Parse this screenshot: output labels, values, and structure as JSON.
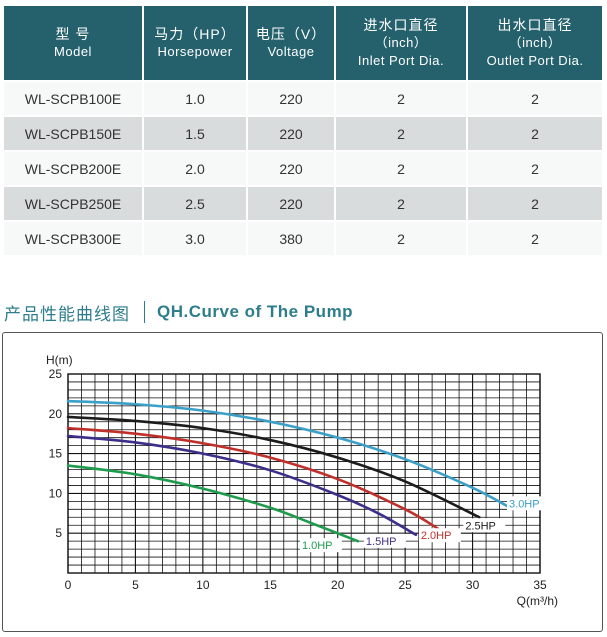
{
  "table": {
    "headers": [
      {
        "zh": "型 号",
        "en": "Model"
      },
      {
        "zh": "马力（HP）",
        "en": "Horsepower"
      },
      {
        "zh": "电压（V）",
        "en": "Voltage"
      },
      {
        "zh": "进水口直径",
        "sub": "（inch）",
        "en": "Inlet Port Dia."
      },
      {
        "zh": "出水口直径",
        "sub": "（inch）",
        "en": "Outlet Port Dia."
      }
    ],
    "rows": [
      [
        "WL-SCPB100E",
        "1.0",
        "220",
        "2",
        "2"
      ],
      [
        "WL-SCPB150E",
        "1.5",
        "220",
        "2",
        "2"
      ],
      [
        "WL-SCPB200E",
        "2.0",
        "220",
        "2",
        "2"
      ],
      [
        "WL-SCPB250E",
        "2.5",
        "220",
        "2",
        "2"
      ],
      [
        "WL-SCPB300E",
        "3.0",
        "380",
        "2",
        "2"
      ]
    ]
  },
  "section": {
    "title_zh": "产品性能曲线图",
    "title_en": "QH.Curve of The Pump"
  },
  "chart_data": {
    "type": "line",
    "xlabel": "Q(m³/h)",
    "ylabel": "H(m)",
    "xlim": [
      0,
      35
    ],
    "ylim": [
      0,
      25
    ],
    "xticks": [
      0,
      5,
      10,
      15,
      20,
      25,
      30,
      35
    ],
    "yticks": [
      5,
      10,
      15,
      20,
      25
    ],
    "grid": true,
    "series": [
      {
        "name": "1.0HP",
        "color": "#1e9b4d",
        "x": [
          0,
          5,
          10,
          15,
          18,
          21.5
        ],
        "y": [
          13.5,
          12.4,
          10.6,
          8.2,
          6.3,
          4.0
        ]
      },
      {
        "name": "1.5HP",
        "color": "#3c2f8a",
        "x": [
          0,
          5,
          10,
          15,
          20,
          23,
          25.8
        ],
        "y": [
          17.2,
          16.4,
          15.0,
          12.9,
          9.8,
          7.5,
          4.8
        ]
      },
      {
        "name": "2.0HP",
        "color": "#c0302a",
        "x": [
          0,
          5,
          10,
          15,
          20,
          25,
          27.5
        ],
        "y": [
          18.2,
          17.5,
          16.3,
          14.5,
          11.8,
          8.0,
          5.5
        ]
      },
      {
        "name": "2.5HP",
        "color": "#1c1c1c",
        "x": [
          0,
          5,
          10,
          15,
          20,
          25,
          30.5
        ],
        "y": [
          19.6,
          19.1,
          18.2,
          16.7,
          14.5,
          11.5,
          7.0
        ]
      },
      {
        "name": "3.0HP",
        "color": "#3aa0c8",
        "x": [
          0,
          5,
          10,
          15,
          20,
          25,
          30,
          33
        ],
        "y": [
          21.6,
          21.2,
          20.4,
          19.0,
          17.0,
          14.3,
          10.7,
          8.0
        ]
      }
    ]
  }
}
